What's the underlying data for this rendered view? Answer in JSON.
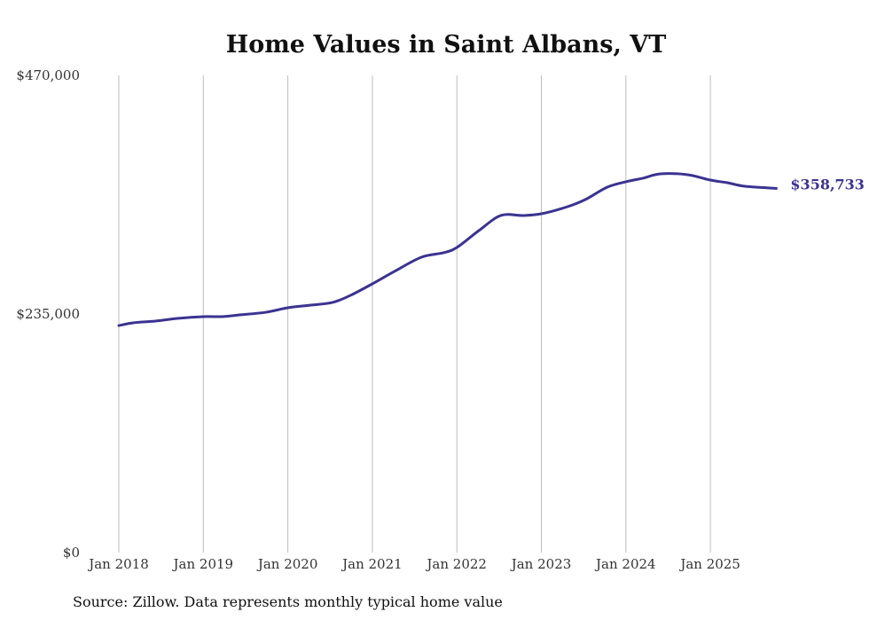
{
  "chart_data": {
    "type": "line",
    "title": "Home Values in Saint Albans, VT",
    "xlabel": "",
    "ylabel": "",
    "ylim": [
      0,
      470000
    ],
    "xlim": [
      2018.0,
      2025.78
    ],
    "grid": "vertical",
    "y_ticks": [
      {
        "value": 0,
        "label": "$0"
      },
      {
        "value": 235000,
        "label": "$235,000"
      },
      {
        "value": 470000,
        "label": "$470,000"
      }
    ],
    "x_ticks": [
      {
        "value": 2018,
        "label": "Jan 2018"
      },
      {
        "value": 2019,
        "label": "Jan 2019"
      },
      {
        "value": 2020,
        "label": "Jan 2020"
      },
      {
        "value": 2021,
        "label": "Jan 2021"
      },
      {
        "value": 2022,
        "label": "Jan 2022"
      },
      {
        "value": 2023,
        "label": "Jan 2023"
      },
      {
        "value": 2024,
        "label": "Jan 2024"
      },
      {
        "value": 2025,
        "label": "Jan 2025"
      }
    ],
    "series": [
      {
        "name": "Typical home value",
        "color": "#3a3391",
        "x": [
          2018.0,
          2018.17,
          2018.43,
          2018.69,
          2019.0,
          2019.22,
          2019.43,
          2019.74,
          2020.0,
          2020.27,
          2020.53,
          2020.74,
          2021.0,
          2021.26,
          2021.58,
          2021.84,
          2022.0,
          2022.26,
          2022.52,
          2022.78,
          2023.0,
          2023.31,
          2023.52,
          2023.78,
          2024.0,
          2024.2,
          2024.41,
          2024.73,
          2025.0,
          2025.2,
          2025.41,
          2025.78
        ],
        "values": [
          223600,
          226300,
          228000,
          230600,
          232400,
          232400,
          234100,
          236700,
          241100,
          243700,
          246400,
          253300,
          264700,
          276900,
          290900,
          295300,
          300500,
          317100,
          332000,
          332000,
          333700,
          340700,
          347700,
          359900,
          365200,
          368700,
          373000,
          372200,
          366900,
          364300,
          360800,
          358733
        ]
      }
    ],
    "end_label": "$358,733",
    "source": "Source: Zillow. Data represents monthly typical home value"
  }
}
